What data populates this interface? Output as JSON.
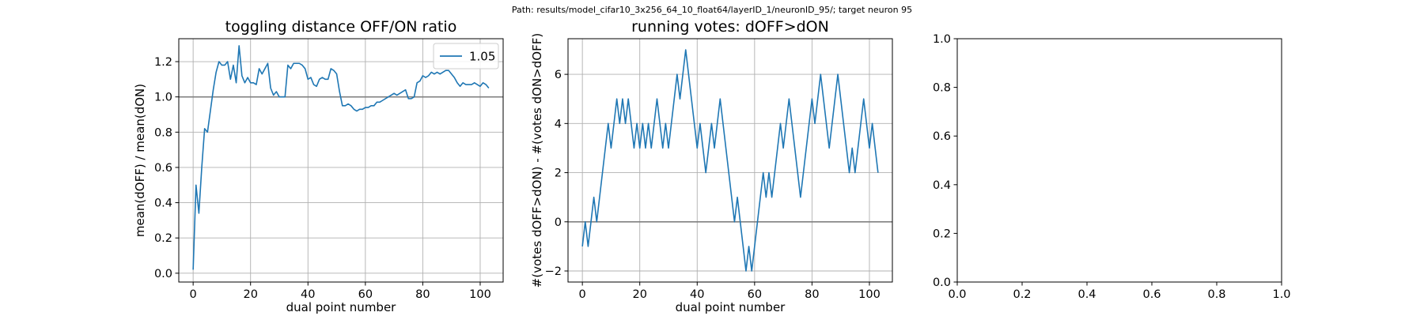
{
  "suptitle": "Path: results/model_cifar10_3x256_64_10_float64/layerID_1/neuronID_95/; target neuron 95",
  "colors": {
    "series": "#1f77b4",
    "refline": "#808080",
    "grid": "#b0b0b0"
  },
  "chart_data": [
    {
      "type": "line",
      "title": "toggling distance OFF/ON ratio",
      "xlabel": "dual point number",
      "ylabel": "mean(dOFF) / mean(dON)",
      "xlim": [
        -5,
        108
      ],
      "ylim": [
        -0.05,
        1.33
      ],
      "xticks": [
        0,
        20,
        40,
        60,
        80,
        100
      ],
      "xtick_labels": [
        "0",
        "20",
        "40",
        "60",
        "80",
        "100"
      ],
      "yticks": [
        0.0,
        0.2,
        0.4,
        0.6,
        0.8,
        1.0,
        1.2
      ],
      "ytick_labels": [
        "0.0",
        "0.2",
        "0.4",
        "0.6",
        "0.8",
        "1.0",
        "1.2"
      ],
      "grid": true,
      "legend_position": "top-right",
      "hline": 1.0,
      "series": [
        {
          "name": "1.05",
          "values": [
            0.02,
            0.5,
            0.34,
            0.6,
            0.82,
            0.8,
            0.92,
            1.04,
            1.14,
            1.2,
            1.18,
            1.18,
            1.2,
            1.1,
            1.18,
            1.08,
            1.29,
            1.12,
            1.08,
            1.11,
            1.08,
            1.08,
            1.07,
            1.16,
            1.13,
            1.16,
            1.19,
            1.05,
            1.01,
            1.03,
            1.0,
            1.0,
            1.0,
            1.18,
            1.16,
            1.19,
            1.19,
            1.19,
            1.18,
            1.16,
            1.1,
            1.11,
            1.07,
            1.06,
            1.1,
            1.11,
            1.1,
            1.1,
            1.16,
            1.15,
            1.13,
            1.03,
            0.95,
            0.95,
            0.96,
            0.95,
            0.93,
            0.92,
            0.93,
            0.93,
            0.94,
            0.94,
            0.95,
            0.95,
            0.97,
            0.97,
            0.98,
            0.99,
            1.0,
            1.01,
            1.02,
            1.01,
            1.02,
            1.03,
            1.04,
            0.99,
            0.99,
            1.0,
            1.08,
            1.09,
            1.12,
            1.11,
            1.12,
            1.14,
            1.13,
            1.14,
            1.13,
            1.14,
            1.15,
            1.15,
            1.13,
            1.11,
            1.08,
            1.06,
            1.08,
            1.07,
            1.07,
            1.07,
            1.08,
            1.07,
            1.06,
            1.08,
            1.07,
            1.05
          ]
        }
      ]
    },
    {
      "type": "line",
      "title": "running votes: dOFF>dON",
      "xlabel": "dual point number",
      "ylabel": "#(votes dOFF>dON) - #(votes dON>dOFF)",
      "xlim": [
        -5,
        108
      ],
      "ylim": [
        -2.45,
        7.45
      ],
      "xticks": [
        0,
        20,
        40,
        60,
        80,
        100
      ],
      "xtick_labels": [
        "0",
        "20",
        "40",
        "60",
        "80",
        "100"
      ],
      "yticks": [
        -2,
        0,
        2,
        4,
        6
      ],
      "ytick_labels": [
        "−2",
        "0",
        "2",
        "4",
        "6"
      ],
      "grid": true,
      "hline": 0,
      "series": [
        {
          "values": [
            -1,
            0,
            -1,
            0,
            1,
            0,
            1,
            2,
            3,
            4,
            3,
            4,
            5,
            4,
            5,
            4,
            5,
            4,
            3,
            4,
            3,
            4,
            3,
            4,
            3,
            4,
            5,
            4,
            3,
            4,
            3,
            4,
            5,
            6,
            5,
            6,
            7,
            6,
            5,
            4,
            3,
            4,
            3,
            2,
            3,
            4,
            3,
            4,
            5,
            4,
            3,
            2,
            1,
            0,
            1,
            0,
            -1,
            -2,
            -1,
            -2,
            -1,
            0,
            1,
            2,
            1,
            2,
            1,
            2,
            3,
            4,
            3,
            4,
            5,
            4,
            3,
            2,
            1,
            2,
            3,
            4,
            5,
            4,
            5,
            6,
            5,
            4,
            3,
            4,
            5,
            6,
            5,
            4,
            3,
            2,
            3,
            2,
            3,
            4,
            5,
            4,
            3,
            4,
            3,
            2
          ]
        }
      ]
    },
    {
      "type": "line",
      "title": "",
      "xlabel": "",
      "ylabel": "",
      "xlim": [
        0,
        1
      ],
      "ylim": [
        0,
        1
      ],
      "xticks": [
        0,
        0.2,
        0.4,
        0.6,
        0.8,
        1.0
      ],
      "xtick_labels": [
        "0.0",
        "0.2",
        "0.4",
        "0.6",
        "0.8",
        "1.0"
      ],
      "yticks": [
        0,
        0.2,
        0.4,
        0.6,
        0.8,
        1.0
      ],
      "ytick_labels": [
        "0.0",
        "0.2",
        "0.4",
        "0.6",
        "0.8",
        "1.0"
      ],
      "grid": false,
      "series": []
    }
  ]
}
